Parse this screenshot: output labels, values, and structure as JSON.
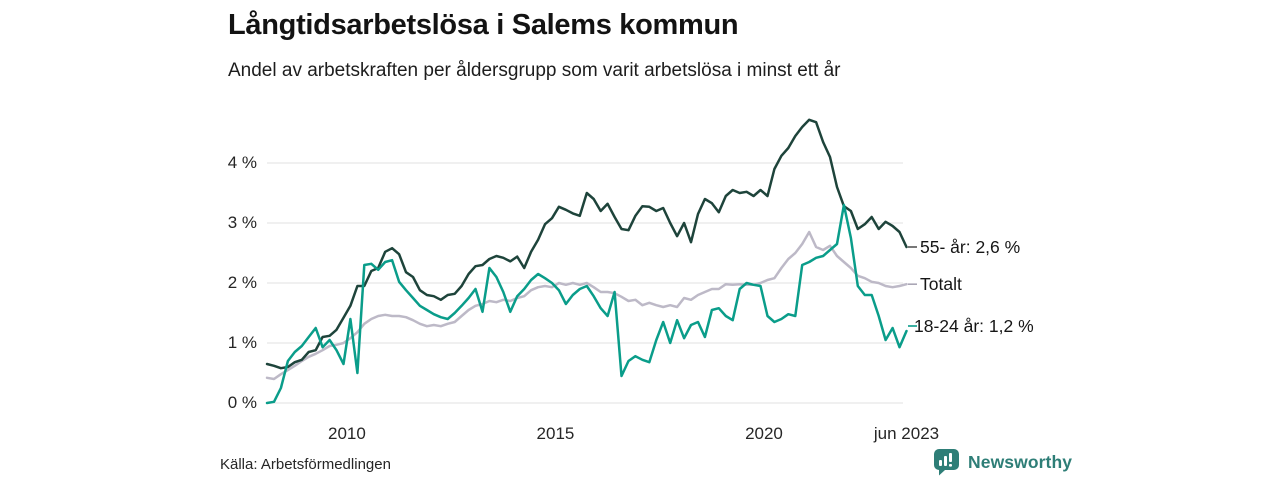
{
  "header": {
    "title": "Långtidsarbetslösa i Salems kommun",
    "subtitle": "Andel av arbetskraften per åldersgrupp som varit arbetslösa i minst ett år"
  },
  "footer": {
    "source": "Källa: Arbetsförmedlingen",
    "brand": "Newsworthy"
  },
  "colors": {
    "series_55": "#1e443b",
    "series_total": "#bdb9c7",
    "series_18_24": "#0a9d8a",
    "grid": "#e8e8e8",
    "axis_text": "#262626",
    "brand_teal": "#2e7e77",
    "background": "#ffffff"
  },
  "chart_data": {
    "type": "line",
    "title": "Långtidsarbetslösa i Salems kommun",
    "subtitle": "Andel av arbetskraften per åldersgrupp som varit arbetslösa i minst ett år",
    "xlabel": "",
    "ylabel": "",
    "x_unit": "decimal_year",
    "xlim": [
      2008.083,
      2023.417
    ],
    "ylim": [
      0,
      4.9
    ],
    "grid": true,
    "legend_position": "right-of-line-end",
    "x_ticks": [
      {
        "t": 2010,
        "label": "2010"
      },
      {
        "t": 2015,
        "label": "2015"
      },
      {
        "t": 2020,
        "label": "2020"
      },
      {
        "t": 2023.417,
        "label": "jun 2023"
      }
    ],
    "y_ticks": [
      {
        "v": 0,
        "label": "0 %"
      },
      {
        "v": 1,
        "label": "1 %"
      },
      {
        "v": 2,
        "label": "2 %"
      },
      {
        "v": 3,
        "label": "3 %"
      },
      {
        "v": 4,
        "label": "4 %"
      }
    ],
    "z_order": [
      1,
      0,
      2
    ],
    "series": [
      {
        "name": "55- år",
        "label": "55- år: 2,6 %",
        "end_value": "2,6 %",
        "color": "#1e443b",
        "marker_color": "#565656",
        "label_dx": 0,
        "label_dy": 0,
        "values": [
          0.65,
          0.62,
          0.58,
          0.6,
          0.68,
          0.72,
          0.85,
          0.88,
          1.1,
          1.12,
          1.22,
          1.42,
          1.62,
          1.95,
          1.95,
          2.2,
          2.25,
          2.52,
          2.58,
          2.48,
          2.18,
          2.1,
          1.88,
          1.8,
          1.78,
          1.72,
          1.8,
          1.82,
          1.95,
          2.15,
          2.28,
          2.3,
          2.4,
          2.45,
          2.42,
          2.36,
          2.44,
          2.25,
          2.52,
          2.72,
          2.98,
          3.08,
          3.27,
          3.22,
          3.16,
          3.12,
          3.5,
          3.4,
          3.2,
          3.32,
          3.1,
          2.9,
          2.88,
          3.12,
          3.28,
          3.27,
          3.2,
          3.25,
          3.0,
          2.78,
          3.0,
          2.68,
          3.15,
          3.4,
          3.33,
          3.18,
          3.45,
          3.55,
          3.5,
          3.52,
          3.45,
          3.55,
          3.45,
          3.9,
          4.12,
          4.25,
          4.45,
          4.6,
          4.72,
          4.68,
          4.35,
          4.1,
          3.6,
          3.28,
          3.2,
          2.9,
          2.98,
          3.1,
          2.9,
          3.02,
          2.95,
          2.85,
          2.6
        ]
      },
      {
        "name": "Totalt",
        "label": "Totalt",
        "end_value": "",
        "color": "#bdb9c7",
        "marker_color": "#aaa6b5",
        "label_dx": 0,
        "label_dy": 0,
        "values": [
          0.42,
          0.4,
          0.48,
          0.55,
          0.62,
          0.7,
          0.77,
          0.82,
          0.88,
          0.95,
          0.97,
          1.0,
          1.08,
          1.18,
          1.32,
          1.4,
          1.45,
          1.47,
          1.45,
          1.45,
          1.43,
          1.38,
          1.32,
          1.28,
          1.3,
          1.28,
          1.32,
          1.35,
          1.45,
          1.55,
          1.62,
          1.65,
          1.7,
          1.68,
          1.72,
          1.7,
          1.75,
          1.78,
          1.88,
          1.93,
          1.95,
          1.93,
          2.0,
          1.97,
          2.0,
          1.97,
          2.0,
          1.93,
          1.85,
          1.85,
          1.83,
          1.77,
          1.7,
          1.72,
          1.63,
          1.67,
          1.63,
          1.6,
          1.63,
          1.6,
          1.75,
          1.72,
          1.8,
          1.85,
          1.9,
          1.9,
          1.98,
          1.97,
          1.98,
          1.97,
          1.97,
          2.0,
          2.05,
          2.08,
          2.25,
          2.4,
          2.5,
          2.65,
          2.85,
          2.6,
          2.55,
          2.62,
          2.45,
          2.35,
          2.25,
          2.12,
          2.08,
          2.02,
          2.0,
          1.95,
          1.93,
          1.95,
          1.98
        ]
      },
      {
        "name": "18-24 år",
        "label": "18-24 år: 1,2 %",
        "end_value": "1,2 %",
        "color": "#0a9d8a",
        "marker_color": "#0a9d8a",
        "label_dx": -6,
        "label_dy": -5,
        "values": [
          0.0,
          0.02,
          0.25,
          0.7,
          0.85,
          0.95,
          1.1,
          1.25,
          0.93,
          1.05,
          0.88,
          0.65,
          1.4,
          0.5,
          2.3,
          2.32,
          2.22,
          2.35,
          2.38,
          2.02,
          1.88,
          1.75,
          1.62,
          1.55,
          1.48,
          1.43,
          1.4,
          1.5,
          1.62,
          1.75,
          1.9,
          1.52,
          2.25,
          2.1,
          1.85,
          1.52,
          1.78,
          1.9,
          2.05,
          2.15,
          2.08,
          2.0,
          1.88,
          1.65,
          1.8,
          1.9,
          1.95,
          1.78,
          1.58,
          1.45,
          1.85,
          0.45,
          0.7,
          0.78,
          0.72,
          0.68,
          1.05,
          1.35,
          1.0,
          1.38,
          1.08,
          1.3,
          1.35,
          1.1,
          1.55,
          1.58,
          1.45,
          1.38,
          1.9,
          2.0,
          1.97,
          1.95,
          1.45,
          1.35,
          1.4,
          1.48,
          1.45,
          2.3,
          2.35,
          2.42,
          2.45,
          2.55,
          2.65,
          3.3,
          2.75,
          1.95,
          1.8,
          1.8,
          1.45,
          1.05,
          1.25,
          0.93,
          1.2
        ]
      }
    ]
  }
}
